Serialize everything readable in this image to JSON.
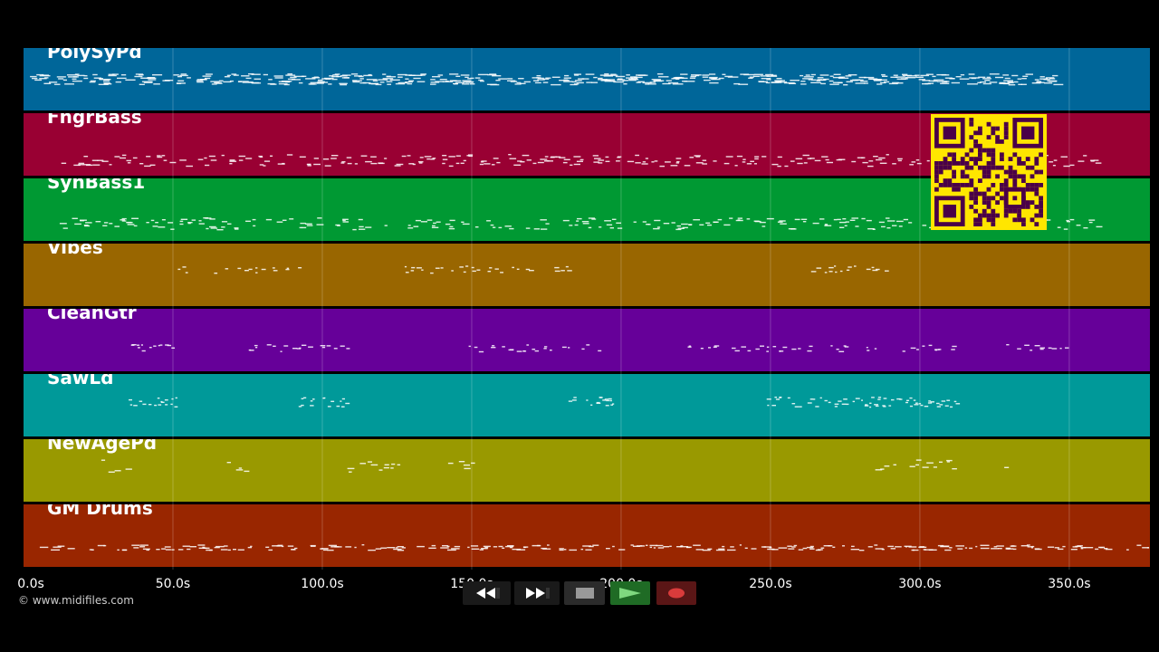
{
  "tracks": [
    {
      "name": "PolySyPd",
      "color": "#006699"
    },
    {
      "name": "FngrBass",
      "color": "#990033"
    },
    {
      "name": "SynBass1",
      "color": "#009933"
    },
    {
      "name": "Vibes",
      "color": "#996600"
    },
    {
      "name": "CleanGtr",
      "color": "#660099"
    },
    {
      "name": "SawLd",
      "color": "#009999"
    },
    {
      "name": "NewAgePd",
      "color": "#999900"
    },
    {
      "name": "GM Drums",
      "color": "#992600"
    }
  ],
  "time_axis": {
    "max_seconds": 377,
    "ticks": [
      "0.0s",
      "50.0s",
      "100.0s",
      "150.0s",
      "200.0s",
      "250.0s",
      "300.0s",
      "350.0s"
    ],
    "tick_values": [
      0,
      50,
      100,
      150,
      200,
      250,
      300,
      350
    ]
  },
  "copyright": "© www.midifiles.com",
  "transport": {
    "rewind_icon": "rewind-icon",
    "fast_forward_icon": "fast-forward-icon",
    "stop_icon": "stop-icon",
    "play_icon": "play-icon",
    "record_icon": "record-icon"
  },
  "qr_icon": "qr-code-icon"
}
